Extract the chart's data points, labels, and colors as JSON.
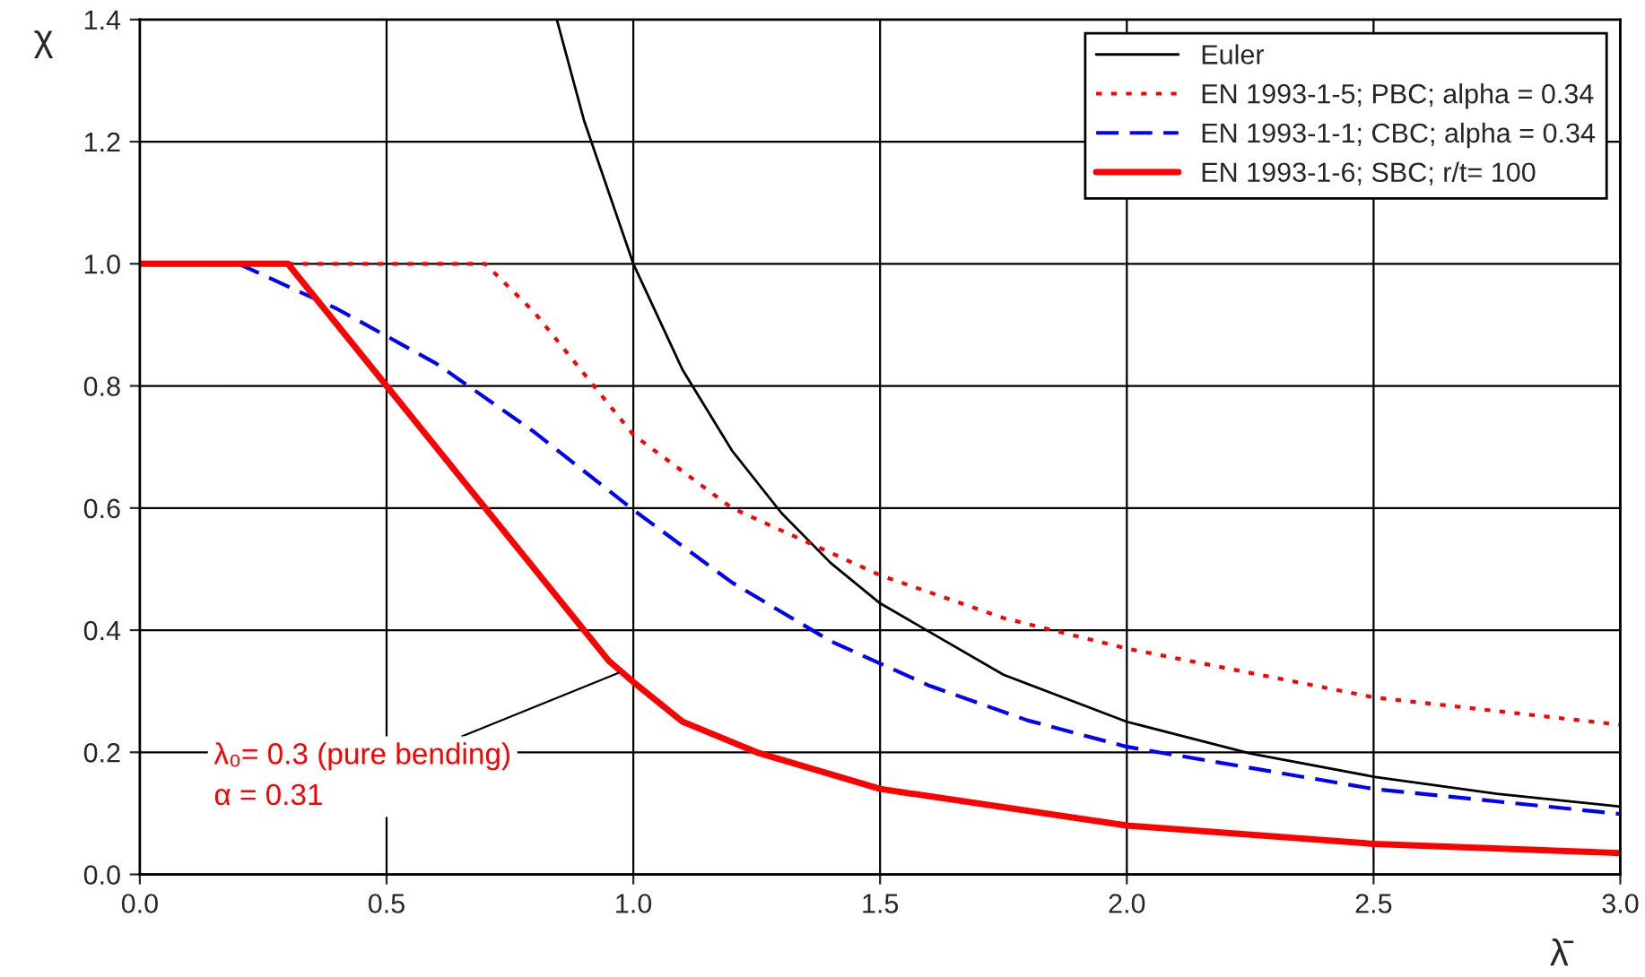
{
  "chart_data": {
    "type": "line",
    "xlabel": "λ̄",
    "ylabel": "χ",
    "xlim": [
      0,
      3
    ],
    "ylim": [
      0,
      1.4
    ],
    "xticks": [
      {
        "value": 0,
        "label": "0.0"
      },
      0.5,
      {
        "value": 1,
        "label": "1.0"
      },
      1.5,
      {
        "value": 2,
        "label": "2.0"
      },
      2.5,
      {
        "value": 3,
        "label": "3.0"
      }
    ],
    "yticks": [
      {
        "value": 0,
        "label": "0.0"
      },
      0.2,
      0.4,
      0.6,
      0.8,
      {
        "value": 1,
        "label": "1.0"
      },
      1.2,
      1.4
    ],
    "grid": true,
    "legend": "top right",
    "marker": "none",
    "series": [
      {
        "name": "Euler",
        "color": "#000000",
        "line_style": "solid",
        "x": [
          0.845,
          0.9,
          1.0,
          1.1,
          1.2,
          1.3,
          1.4,
          1.5,
          1.75,
          2.0,
          2.25,
          2.5,
          2.75,
          3.0
        ],
        "values": [
          1.4,
          1.235,
          1.0,
          0.826,
          0.694,
          0.592,
          0.51,
          0.444,
          0.327,
          0.25,
          0.198,
          0.16,
          0.132,
          0.111
        ]
      },
      {
        "name": "EN 1993-1-5; PBC; alpha = 0.34",
        "color": "#ff0000",
        "line_style": "dotted",
        "x": [
          0.3,
          0.7,
          0.8,
          0.9,
          1.0,
          1.2,
          1.5,
          1.75,
          2.0,
          2.5,
          3.0
        ],
        "values": [
          1.0,
          1.0,
          0.92,
          0.82,
          0.72,
          0.6,
          0.49,
          0.42,
          0.37,
          0.29,
          0.245
        ]
      },
      {
        "name": "EN 1993-1-1; CBC; alpha = 0.34",
        "color": "#0000ff",
        "line_style": "dashed",
        "x": [
          0.2,
          0.4,
          0.6,
          0.8,
          1.0,
          1.2,
          1.4,
          1.6,
          1.8,
          2.0,
          2.5,
          3.0
        ],
        "values": [
          1.0,
          0.926,
          0.837,
          0.724,
          0.597,
          0.478,
          0.382,
          0.309,
          0.252,
          0.209,
          0.14,
          0.099
        ]
      },
      {
        "name": "EN 1993-1-6; SBC; r/t= 100",
        "color": "#ff0000",
        "line_style": "solid",
        "x": [
          0.0,
          0.3,
          0.5,
          0.9,
          0.95,
          1.0,
          1.1,
          1.25,
          1.5,
          2.0,
          2.5,
          3.0
        ],
        "values": [
          1.0,
          1.0,
          0.8,
          0.4,
          0.35,
          0.315,
          0.25,
          0.2,
          0.14,
          0.08,
          0.05,
          0.035
        ]
      }
    ],
    "annotations": [
      {
        "text": "λ₀= 0.3 (pure bending)\nα = 0.31",
        "x": 0.97,
        "y": 0.33
      }
    ]
  }
}
